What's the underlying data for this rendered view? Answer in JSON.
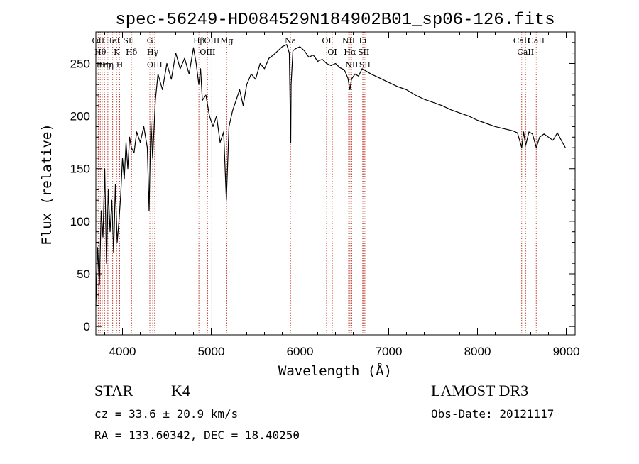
{
  "chart_data": {
    "type": "line",
    "title": "spec-56249-HD084529N184902B01_sp06-126.fits",
    "xlabel": "Wavelength (Å)",
    "ylabel": "Flux (relative)",
    "xlim": [
      3700,
      9100
    ],
    "ylim": [
      -8,
      280
    ],
    "x_ticks": [
      "4000",
      "5000",
      "6000",
      "7000",
      "8000",
      "9000"
    ],
    "y_ticks": [
      "0",
      "50",
      "100",
      "150",
      "200",
      "250"
    ],
    "x_tick_values": [
      4000,
      5000,
      6000,
      7000,
      8000,
      9000
    ],
    "y_tick_values": [
      0,
      50,
      100,
      150,
      200,
      250
    ],
    "series": [
      {
        "name": "flux",
        "x": [
          3700,
          3720,
          3740,
          3760,
          3780,
          3800,
          3820,
          3840,
          3860,
          3880,
          3900,
          3920,
          3940,
          3960,
          3980,
          4000,
          4020,
          4040,
          4060,
          4080,
          4100,
          4130,
          4160,
          4200,
          4240,
          4280,
          4300,
          4320,
          4340,
          4370,
          4400,
          4450,
          4500,
          4550,
          4600,
          4650,
          4700,
          4750,
          4800,
          4830,
          4860,
          4880,
          4900,
          4940,
          4980,
          5020,
          5060,
          5100,
          5140,
          5170,
          5183,
          5200,
          5240,
          5280,
          5320,
          5360,
          5400,
          5450,
          5500,
          5550,
          5600,
          5650,
          5700,
          5750,
          5800,
          5850,
          5880,
          5890,
          5896,
          5900,
          5920,
          5950,
          6000,
          6050,
          6100,
          6150,
          6200,
          6250,
          6300,
          6350,
          6400,
          6450,
          6500,
          6540,
          6563,
          6580,
          6620,
          6660,
          6700,
          6800,
          6900,
          7000,
          7100,
          7200,
          7300,
          7400,
          7500,
          7600,
          7700,
          7800,
          7900,
          8000,
          8100,
          8200,
          8300,
          8400,
          8450,
          8498,
          8520,
          8542,
          8580,
          8620,
          8662,
          8700,
          8750,
          8800,
          8850,
          8900,
          8950,
          8990
        ],
        "values": [
          20,
          75,
          40,
          110,
          85,
          150,
          60,
          130,
          90,
          120,
          70,
          135,
          80,
          100,
          125,
          160,
          140,
          175,
          150,
          180,
          170,
          165,
          185,
          175,
          190,
          170,
          110,
          195,
          160,
          215,
          240,
          225,
          250,
          235,
          260,
          245,
          255,
          240,
          265,
          250,
          230,
          245,
          215,
          220,
          200,
          190,
          200,
          175,
          185,
          120,
          150,
          190,
          205,
          215,
          225,
          210,
          230,
          240,
          235,
          250,
          245,
          255,
          258,
          262,
          266,
          268,
          260,
          200,
          175,
          230,
          262,
          264,
          266,
          262,
          256,
          258,
          252,
          254,
          250,
          248,
          250,
          246,
          244,
          236,
          225,
          235,
          240,
          238,
          245,
          240,
          236,
          232,
          228,
          225,
          220,
          216,
          213,
          210,
          206,
          203,
          200,
          196,
          193,
          190,
          188,
          186,
          184,
          170,
          185,
          172,
          185,
          183,
          170,
          180,
          183,
          180,
          177,
          184,
          176,
          170
        ]
      }
    ],
    "line_markers": [
      {
        "x": 3727,
        "label": "OII"
      },
      {
        "x": 3750,
        "label": "Hθ"
      },
      {
        "x": 3771,
        "label": "Hη"
      },
      {
        "x": 3798,
        "label": "Hη"
      },
      {
        "x": 3835,
        "label": "Hη"
      },
      {
        "x": 3889,
        "label": "HeI"
      },
      {
        "x": 3934,
        "label": "K"
      },
      {
        "x": 3968,
        "label": "H"
      },
      {
        "x": 4072,
        "label": "SII"
      },
      {
        "x": 4102,
        "label": "Hδ"
      },
      {
        "x": 4308,
        "label": "G"
      },
      {
        "x": 4341,
        "label": "Hγ"
      },
      {
        "x": 4363,
        "label": "OIII"
      },
      {
        "x": 4861,
        "label": "Hβ"
      },
      {
        "x": 4959,
        "label": "OIII"
      },
      {
        "x": 5007,
        "label": "OIII"
      },
      {
        "x": 5175,
        "label": "Mg"
      },
      {
        "x": 5893,
        "label": "Na"
      },
      {
        "x": 6300,
        "label": "OI"
      },
      {
        "x": 6364,
        "label": "OI"
      },
      {
        "x": 6548,
        "label": "NII"
      },
      {
        "x": 6563,
        "label": "Hα"
      },
      {
        "x": 6583,
        "label": "NII"
      },
      {
        "x": 6707,
        "label": "Li"
      },
      {
        "x": 6717,
        "label": "SII"
      },
      {
        "x": 6731,
        "label": "SII"
      },
      {
        "x": 8498,
        "label": "CaII"
      },
      {
        "x": 8542,
        "label": "CaII"
      },
      {
        "x": 8662,
        "label": "CaII"
      }
    ],
    "grid": false,
    "legend": "none"
  },
  "info": {
    "object_class": "STAR",
    "subclass": "K4",
    "survey": "LAMOST DR3",
    "redshift": "cz = 33.6 ± 20.9 km/s",
    "obs_date": "Obs-Date: 20121117",
    "coords": "RA = 133.60342, DEC =  18.40250"
  },
  "colors": {
    "line": "#000000",
    "marker": "#c0392b",
    "axis": "#000000",
    "background": "#ffffff"
  }
}
